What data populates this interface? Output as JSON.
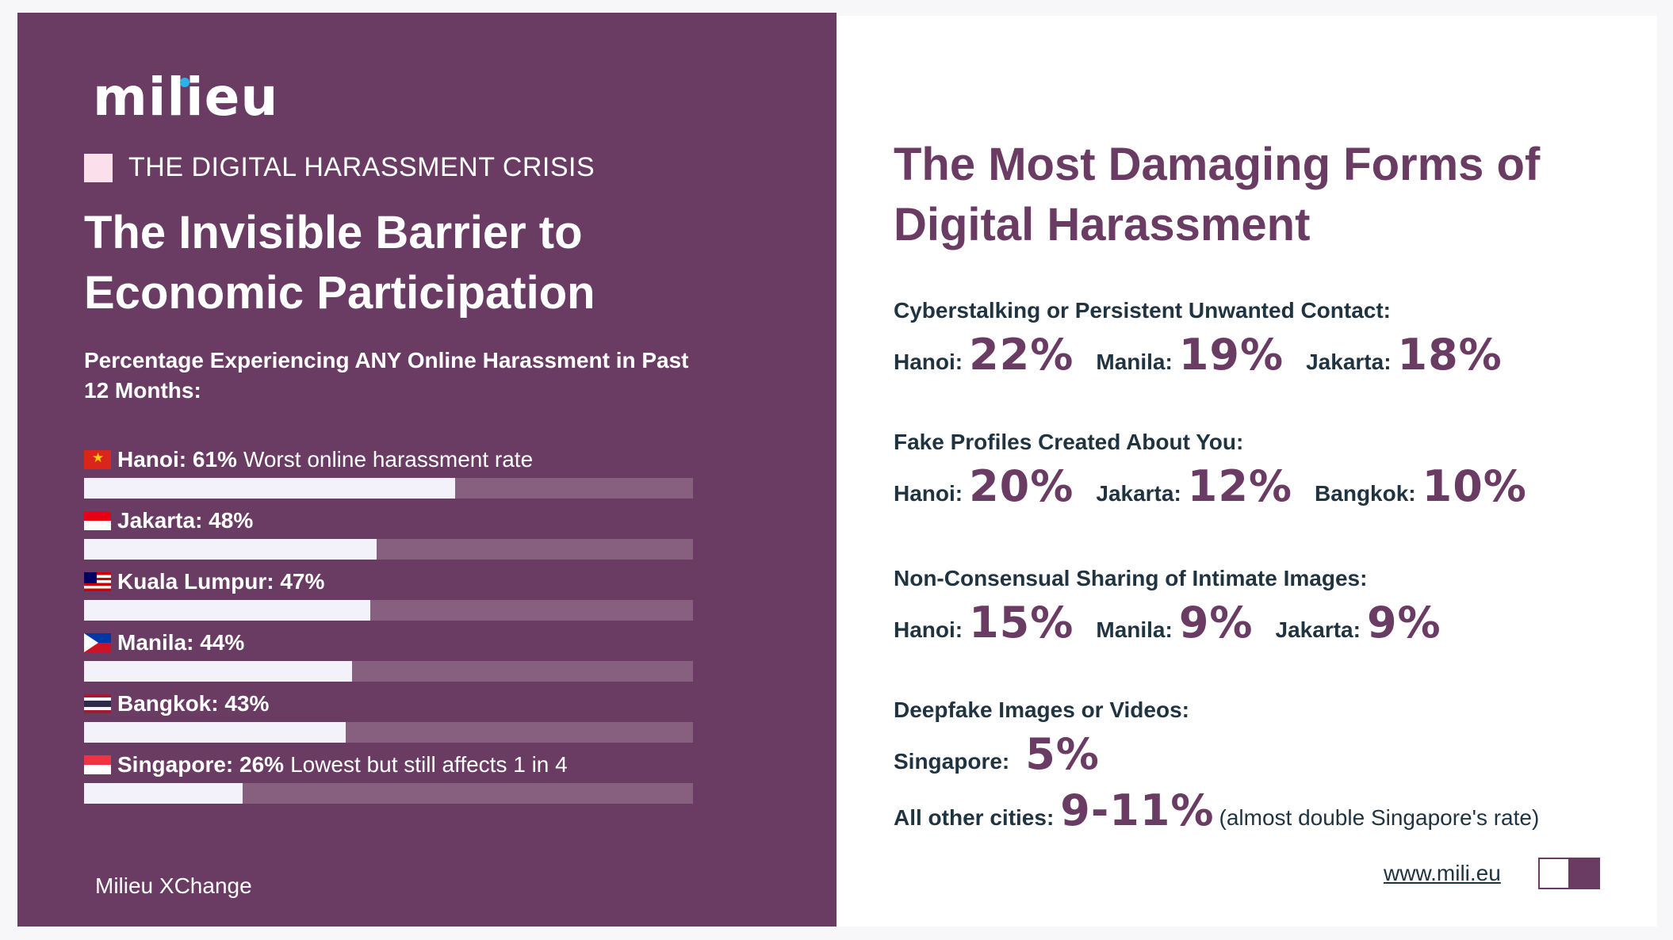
{
  "brand": {
    "logo_text": "milieu",
    "footer": "Milieu XChange",
    "url": "www.mili.eu"
  },
  "left": {
    "kicker": "THE DIGITAL HARASSMENT CRISIS",
    "title": "The Invisible Barrier to Economic Participation",
    "subtitle": "Percentage Experiencing ANY Online Harassment in Past 12 Months:"
  },
  "chart_data": {
    "type": "bar",
    "orientation": "horizontal",
    "title": "Percentage Experiencing ANY Online Harassment in Past 12 Months:",
    "unit": "%",
    "xlim": [
      0,
      100
    ],
    "categories": [
      "Hanoi",
      "Jakarta",
      "Kuala Lumpur",
      "Manila",
      "Bangkok",
      "Singapore"
    ],
    "values": [
      61,
      48,
      47,
      44,
      43,
      26
    ],
    "labels": [
      "Hanoi: 61%",
      "Jakarta: 48%",
      "Kuala Lumpur: 47%",
      "Manila: 44%",
      "Bangkok: 43%",
      "Singapore: 26%"
    ],
    "annotations": [
      "Worst online harassment rate",
      "",
      "",
      "",
      "",
      "Lowest but still affects 1 in 4"
    ],
    "flags": [
      "vietnam-flag-icon",
      "indonesia-flag-icon",
      "malaysia-flag-icon",
      "philippines-flag-icon",
      "thailand-flag-icon",
      "singapore-flag-icon"
    ],
    "bar_color": "#f3f1f9",
    "track_color": "#87607f",
    "grid": false
  },
  "right": {
    "title": "The Most Damaging Forms of Digital Harassment",
    "stats": [
      {
        "heading": "Cyberstalking or Persistent Unwanted Contact:",
        "items": [
          {
            "city": "Hanoi:",
            "value": "22%"
          },
          {
            "city": "Manila:",
            "value": "19%"
          },
          {
            "city": "Jakarta:",
            "value": "18%"
          }
        ]
      },
      {
        "heading": "Fake Profiles Created About You:",
        "items": [
          {
            "city": "Hanoi:",
            "value": "20%"
          },
          {
            "city": "Jakarta:",
            "value": "12%"
          },
          {
            "city": "Bangkok:",
            "value": "10%"
          }
        ]
      },
      {
        "heading": "Non-Consensual Sharing of Intimate Images:",
        "items": [
          {
            "city": "Hanoi:",
            "value": "15%"
          },
          {
            "city": "Manila:",
            "value": "9%"
          },
          {
            "city": "Jakarta:",
            "value": "9%"
          }
        ]
      },
      {
        "heading": "Deepfake Images or Videos:",
        "items": [
          {
            "city": "Singapore:",
            "value": "5%"
          }
        ],
        "extra": {
          "city": "All other cities:",
          "value": "9-11%",
          "note": "(almost double Singapore's rate)"
        }
      }
    ]
  },
  "colors": {
    "primary": "#6a3c64",
    "accent_pink": "#fbe0ec",
    "text_dark": "#1f3340",
    "logo_dot": "#2ab3e6"
  }
}
